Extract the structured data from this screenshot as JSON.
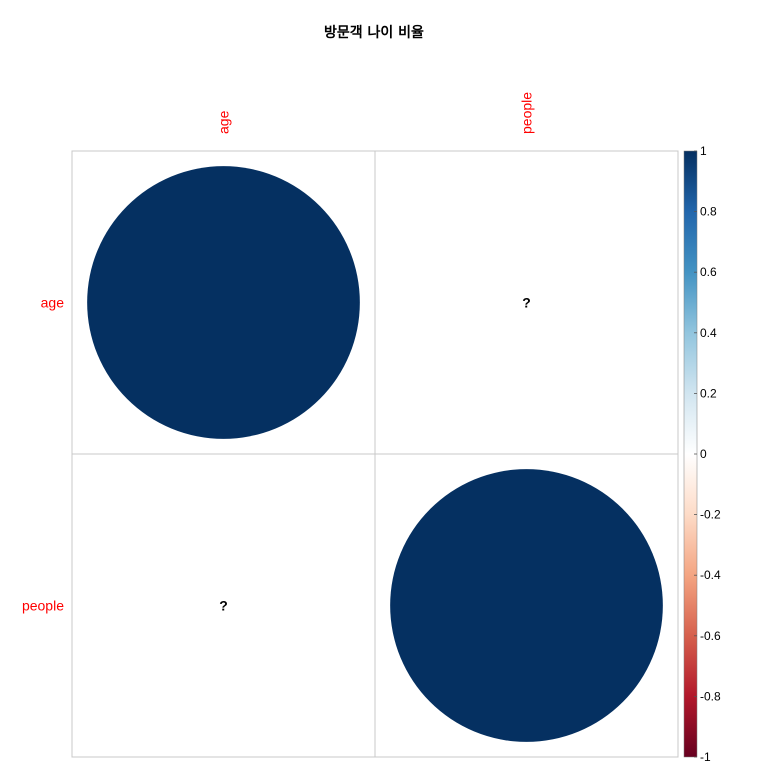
{
  "chart_data": {
    "type": "heatmap",
    "subtype": "correlation-matrix-circles",
    "title": "방문객 나이 비율",
    "variables": [
      "age",
      "people"
    ],
    "label_color": "#FF0000",
    "matrix": [
      [
        1,
        null
      ],
      [
        null,
        1
      ]
    ],
    "na_label": "?",
    "colorbar": {
      "range": [
        -1,
        1
      ],
      "ticks": [
        "1",
        "0.8",
        "0.6",
        "0.4",
        "0.2",
        "0",
        "-0.2",
        "-0.4",
        "-0.6",
        "-0.8",
        "-1"
      ],
      "colors": [
        "#67001F",
        "#B2182B",
        "#D6604D",
        "#F4A582",
        "#FDDBC7",
        "#FFFFFF",
        "#D1E5F0",
        "#92C5DE",
        "#4393C3",
        "#2166AC",
        "#053061"
      ]
    },
    "grid": true,
    "legend": "right"
  }
}
